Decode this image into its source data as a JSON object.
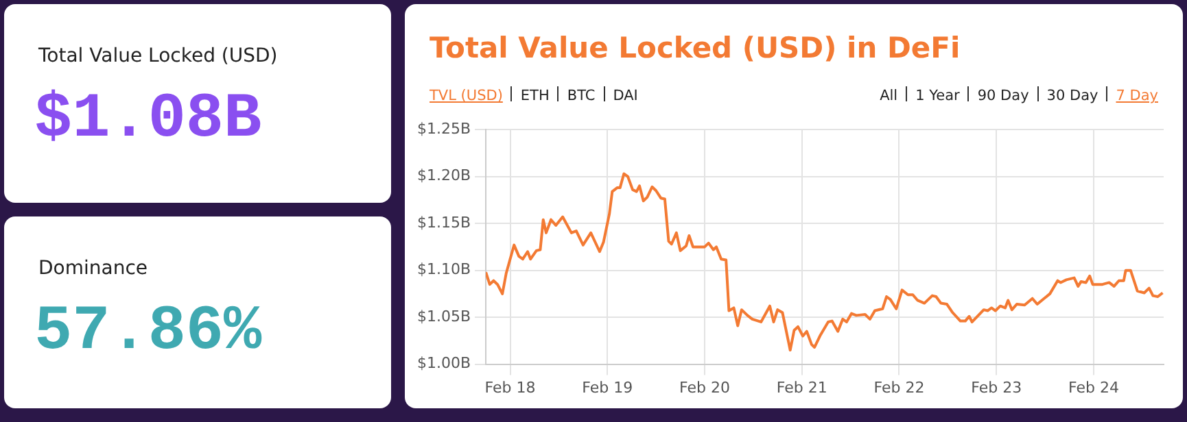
{
  "chart_data": [
    {
      "type": "other",
      "title": "Total Value Locked (USD)",
      "annotations": [
        "$1.08B"
      ],
      "color": "#8a4ff0"
    },
    {
      "type": "other",
      "title": "Dominance",
      "annotations": [
        "57.86%"
      ],
      "color": "#3fa9b1"
    },
    {
      "type": "line",
      "title": "Total Value Locked (USD) in DeFi",
      "annotations": [
        "TVL (USD)",
        "ETH",
        "BTC",
        "DAI",
        "All",
        "1 Year",
        "90 Day",
        "30 Day",
        "7 Day"
      ],
      "x": [
        "--02-17T18:00",
        "--02-17T18:58",
        "--02-17T19:55",
        "--02-17T20:53",
        "--02-17T22:05",
        "--02-17T23:02",
        "--02-18T00:58",
        "--02-18T02:10",
        "--02-18T03:07",
        "--02-18T04:19",
        "--02-18T05:02",
        "--02-18T06:29",
        "--02-18T07:26",
        "--02-18T08:10",
        "--02-18T08:53",
        "--02-18T10:05",
        "--02-18T11:17",
        "--02-18T12:58",
        "--02-18T15:07",
        "--02-18T16:19",
        "--02-18T18:00",
        "--02-18T19:55",
        "--02-18T22:05",
        "--02-18T23:02",
        "--02-19T00:29",
        "--02-19T01:12",
        "--02-19T02:24",
        "--02-19T03:07",
        "--02-19T04:05",
        "--02-19T05:02",
        "--02-19T06:14",
        "--02-19T07:12",
        "--02-19T07:55",
        "--02-19T08:53",
        "--02-19T09:50",
        "--02-19T11:02",
        "--02-19T12:00",
        "--02-19T13:12",
        "--02-19T14:10",
        "--02-19T15:07",
        "--02-19T15:50",
        "--02-19T17:02",
        "--02-19T18:00",
        "--02-19T19:26",
        "--02-19T20:10",
        "--02-19T21:07",
        "--02-20T00:00",
        "--02-20T00:58",
        "--02-20T02:10",
        "--02-20T02:53",
        "--02-20T04:05",
        "--02-20T05:17",
        "--02-20T06:00",
        "--02-20T07:12",
        "--02-20T08:10",
        "--02-20T09:07",
        "--02-20T10:34",
        "--02-20T11:46",
        "--02-20T13:55",
        "--02-20T16:05",
        "--02-20T17:02",
        "--02-20T18:00",
        "--02-20T19:12",
        "--02-20T21:07",
        "--02-20T22:05",
        "--02-20T23:02",
        "--02-21T00:14",
        "--02-21T01:12",
        "--02-21T02:24",
        "--02-21T03:07",
        "--02-21T04:34",
        "--02-21T06:29",
        "--02-21T07:26",
        "--02-21T08:53",
        "--02-21T10:05",
        "--02-21T11:02",
        "--02-21T12:14",
        "--02-21T13:26",
        "--02-21T15:36",
        "--02-21T16:48",
        "--02-21T18:00",
        "--02-21T19:55",
        "--02-21T20:53",
        "--02-21T21:50",
        "--02-21T23:17",
        "--02-22T00:43",
        "--02-22T02:10",
        "--02-22T03:22",
        "--02-22T04:34",
        "--02-22T06:14",
        "--02-22T08:10",
        "--02-22T09:07",
        "--02-22T10:19",
        "--02-22T11:46",
        "--02-22T13:12",
        "--02-22T15:07",
        "--02-22T16:19",
        "--02-22T17:17",
        "--02-22T18:00",
        "--02-22T20:53",
        "--02-22T21:50",
        "--02-22T22:48",
        "--02-22T23:46",
        "--02-23T00:58",
        "--02-23T02:10",
        "--02-23T02:53",
        "--02-23T03:50",
        "--02-23T05:02",
        "--02-23T06:58",
        "--02-23T08:53",
        "--02-23T10:05",
        "--02-23T11:46",
        "--02-23T13:12",
        "--02-23T15:07",
        "--02-23T15:50",
        "--02-23T17:17",
        "--02-23T19:12",
        "--02-23T20:10",
        "--02-23T20:53",
        "--02-23T22:05",
        "--02-23T23:02",
        "--02-23T23:46",
        "--02-24T02:10",
        "--02-24T03:50",
        "--02-24T05:02",
        "--02-24T06:14",
        "--02-24T07:26",
        "--02-24T07:55",
        "--02-24T09:07",
        "--02-24T10:48",
        "--02-24T12:29",
        "--02-24T13:41",
        "--02-24T14:38",
        "--02-24T15:50",
        "--02-24T17:02"
      ],
      "values": [
        1.098,
        1.085,
        1.089,
        1.085,
        1.075,
        1.097,
        1.127,
        1.115,
        1.112,
        1.12,
        1.112,
        1.121,
        1.122,
        1.154,
        1.14,
        1.154,
        1.148,
        1.157,
        1.14,
        1.142,
        1.127,
        1.14,
        1.12,
        1.13,
        1.16,
        1.184,
        1.188,
        1.188,
        1.203,
        1.2,
        1.186,
        1.184,
        1.19,
        1.174,
        1.178,
        1.189,
        1.185,
        1.177,
        1.176,
        1.131,
        1.128,
        1.14,
        1.121,
        1.126,
        1.137,
        1.125,
        1.125,
        1.129,
        1.122,
        1.125,
        1.112,
        1.111,
        1.057,
        1.06,
        1.041,
        1.058,
        1.052,
        1.048,
        1.045,
        1.062,
        1.045,
        1.058,
        1.055,
        1.015,
        1.036,
        1.04,
        1.03,
        1.035,
        1.021,
        1.018,
        1.031,
        1.045,
        1.046,
        1.035,
        1.048,
        1.045,
        1.054,
        1.052,
        1.053,
        1.048,
        1.057,
        1.059,
        1.072,
        1.069,
        1.059,
        1.079,
        1.074,
        1.074,
        1.068,
        1.065,
        1.073,
        1.072,
        1.065,
        1.064,
        1.055,
        1.046,
        1.046,
        1.051,
        1.045,
        1.058,
        1.057,
        1.06,
        1.057,
        1.062,
        1.06,
        1.068,
        1.058,
        1.064,
        1.063,
        1.07,
        1.064,
        1.07,
        1.075,
        1.089,
        1.087,
        1.09,
        1.092,
        1.083,
        1.088,
        1.087,
        1.094,
        1.085,
        1.085,
        1.087,
        1.083,
        1.089,
        1.089,
        1.1,
        1.1,
        1.078,
        1.076,
        1.081,
        1.073,
        1.072,
        1.076
      ],
      "color": "#f37a33",
      "marker": "none",
      "line_style": "solid",
      "grid": true,
      "xlim": [
        "--02-17T18:00",
        "--02-24T17:17"
      ],
      "xticks": [
        {
          "value": "--02-18",
          "label": "Feb 18"
        },
        {
          "value": "--02-19",
          "label": "Feb 19"
        },
        {
          "value": "--02-20",
          "label": "Feb 20"
        },
        {
          "value": "--02-21",
          "label": "Feb 21"
        },
        {
          "value": "--02-22",
          "label": "Feb 22"
        },
        {
          "value": "--02-23",
          "label": "Feb 23"
        },
        {
          "value": "--02-24",
          "label": "Feb 24"
        }
      ],
      "ylim": [
        1.0,
        1.25
      ],
      "yticks": [
        {
          "value": 1.0,
          "label": "$1.00B"
        },
        {
          "value": 1.05,
          "label": "$1.05B"
        },
        {
          "value": 1.1,
          "label": "$1.10B"
        },
        {
          "value": 1.15,
          "label": "$1.15B"
        },
        {
          "value": 1.2,
          "label": "$1.20B"
        },
        {
          "value": 1.25,
          "label": "$1.25B"
        }
      ]
    }
  ]
}
